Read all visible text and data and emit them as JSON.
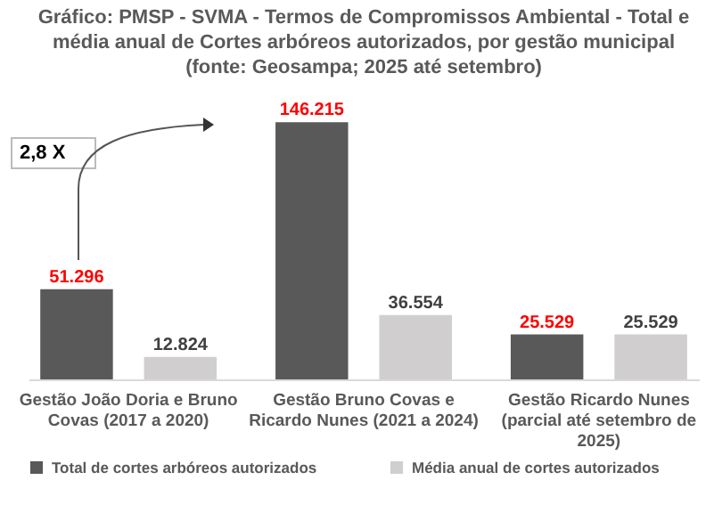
{
  "chart_data": {
    "type": "bar",
    "title": "Gráfico: PMSP - SVMA - Termos de Compromissos Ambiental - Total e média anual de Cortes arbóreos autorizados, por gestão municipal (fonte: Geosampa; 2025 até setembro)",
    "categories": [
      "Gestão João Doria e Bruno Covas (2017 a 2020)",
      "Gestão  Bruno Covas e Ricardo Nunes (2021 a 2024)",
      "Gestão Ricardo Nunes (parcial até setembro de 2025)"
    ],
    "series": [
      {
        "name": "Total de cortes arbóreos autorizados",
        "color": "#595959",
        "values": [
          51296,
          146215,
          25529
        ],
        "value_labels": [
          "51.296",
          "146.215",
          "25.529"
        ]
      },
      {
        "name": "Média anual de cortes autorizados",
        "color": "#d0cece",
        "values": [
          12824,
          36554,
          25529
        ],
        "value_labels": [
          "12.824",
          "36.554",
          "25.529"
        ]
      }
    ],
    "tick_labels": "x",
    "legend": "bottom",
    "annotations": [
      "2,8 X"
    ]
  }
}
